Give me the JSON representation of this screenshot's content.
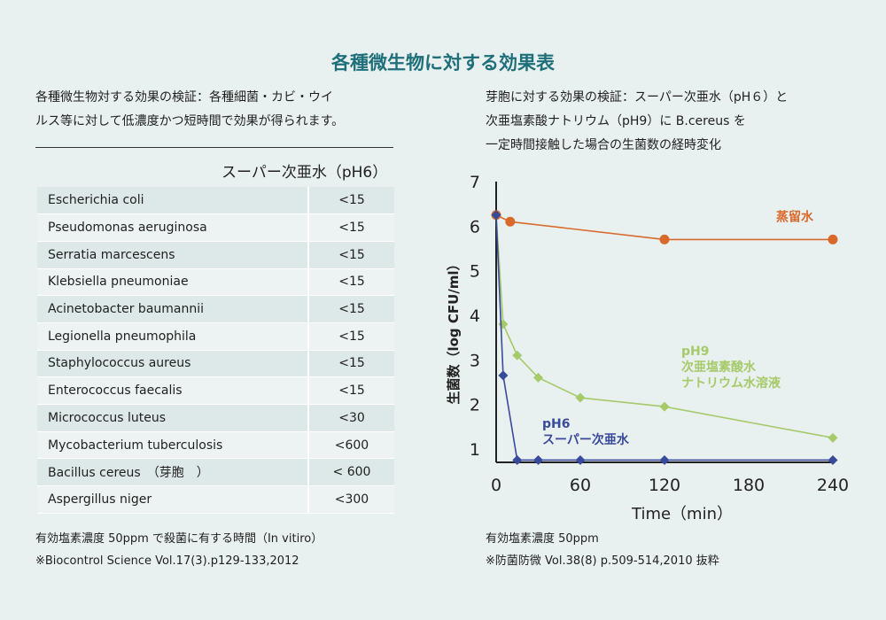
{
  "title": "各種微生物に対する効果表",
  "left": {
    "description_line1": "各種微生物対する効果の検証：各種細菌・カビ・ウイ",
    "description_line2": "ルス等に対して低濃度かつ短時間で効果が得られます。",
    "table_header": "スーパー次亜水（pH6）",
    "rows": [
      {
        "organism": "Escherichia coli",
        "value": "<15"
      },
      {
        "organism": "Pseudomonas aeruginosa",
        "value": "<15"
      },
      {
        "organism": "Serratia marcescens",
        "value": "<15"
      },
      {
        "organism": "Klebsiella pneumoniae",
        "value": "<15"
      },
      {
        "organism": "Acinetobacter baumannii",
        "value": "<15"
      },
      {
        "organism": "Legionella pneumophila",
        "value": "<15"
      },
      {
        "organism": "Staphylococcus aureus",
        "value": "<15"
      },
      {
        "organism": "Enterococcus faecalis",
        "value": "<15"
      },
      {
        "organism": "Micrococcus luteus",
        "value": "<30"
      },
      {
        "organism": "Mycobacterium tuberculosis",
        "value": "<600"
      },
      {
        "organism": "Bacillus cereus　（芽胞　）",
        "value": "< 600"
      },
      {
        "organism": "Aspergillus niger",
        "value": "<300"
      }
    ],
    "note_line1": "有効塩素濃度 50ppm で殺菌に有する時間（In vitiro）",
    "note_line2": "※Biocontrol Science Vol.17(3).p129-133,2012"
  },
  "right": {
    "description_line1": "芽胞に対する効果の検証：スーパー次亜水（pH６）と",
    "description_line2": "次亜塩素酸ナトリウム（pH9）に B.cereus を",
    "description_line3": "一定時間接触した場合の生菌数の経時変化",
    "note_line1": "有効塩素濃度 50ppm",
    "note_line2": "※防菌防微 Vol.38(8) p.509-514,2010 抜粋"
  },
  "chart_data": {
    "type": "line",
    "xlabel": "Time（min）",
    "ylabel": "生菌数（log CFU/ml）",
    "xlim": [
      0,
      240
    ],
    "ylim": [
      0.7,
      7
    ],
    "xticks": [
      0,
      60,
      120,
      180,
      240
    ],
    "yticks": [
      1,
      2,
      3,
      4,
      5,
      6,
      7
    ],
    "grid": false,
    "series": [
      {
        "name": "蒸留水",
        "color": "#d9692a",
        "marker": "circle",
        "x": [
          0,
          10,
          120,
          240
        ],
        "y": [
          6.25,
          6.1,
          5.7,
          5.7
        ]
      },
      {
        "name": "pH9 次亜塩素酸水 ナトリウム水溶液",
        "label_lines": [
          "pH9",
          "次亜塩素酸水",
          "ナトリウム水溶液"
        ],
        "color": "#a6c96a",
        "marker": "diamond",
        "x": [
          0,
          5,
          15,
          30,
          60,
          120,
          240
        ],
        "y": [
          6.25,
          3.8,
          3.1,
          2.6,
          2.15,
          1.95,
          1.25
        ]
      },
      {
        "name": "pH6 スーパー次亜水",
        "label_lines": [
          "pH6",
          "スーパー次亜水"
        ],
        "color": "#3a4a9a",
        "marker": "diamond",
        "x": [
          0,
          5,
          15,
          30,
          60,
          120,
          240
        ],
        "y": [
          6.25,
          2.65,
          0.75,
          0.75,
          0.75,
          0.75,
          0.75
        ]
      }
    ]
  }
}
